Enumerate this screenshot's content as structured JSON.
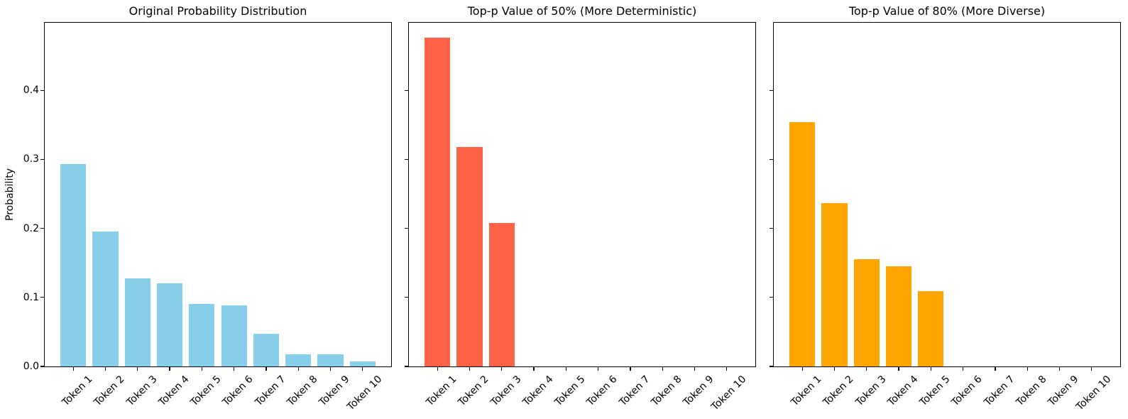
{
  "figure": {
    "background_color": "#ffffff",
    "text_color": "#000000"
  },
  "chart_data": [
    {
      "type": "bar",
      "title": "Original Probability Distribution",
      "ylabel": "Probability",
      "xlabel": "",
      "categories": [
        "Token 1",
        "Token 2",
        "Token 3",
        "Token 4",
        "Token 5",
        "Token 6",
        "Token 7",
        "Token 8",
        "Token 9",
        "Token 10"
      ],
      "values": [
        0.293,
        0.196,
        0.128,
        0.12,
        0.091,
        0.089,
        0.047,
        0.017,
        0.017,
        0.007
      ],
      "bar_color": "#87CEEB",
      "bar_color_name": "skyblue",
      "ylim": [
        0,
        0.498
      ],
      "yticks": [
        0,
        0.1,
        0.2,
        0.3,
        0.4
      ],
      "ytick_labels": [
        "0.0",
        "0.1",
        "0.2",
        "0.3",
        "0.4"
      ],
      "show_ytick_labels": true,
      "xtick_rotation_deg": 45,
      "grid": false,
      "legend": null
    },
    {
      "type": "bar",
      "title": "Top-p Value of 50% (More Deterministic)",
      "ylabel": "",
      "xlabel": "",
      "categories": [
        "Token 1",
        "Token 2",
        "Token 3",
        "Token 4",
        "Token 5",
        "Token 6",
        "Token 7",
        "Token 8",
        "Token 9",
        "Token 10"
      ],
      "values": [
        0.476,
        0.318,
        0.208,
        0,
        0,
        0,
        0,
        0,
        0,
        0
      ],
      "bar_color": "#FF6347",
      "bar_color_name": "tomato",
      "ylim": [
        0,
        0.498
      ],
      "yticks": [
        0,
        0.1,
        0.2,
        0.3,
        0.4
      ],
      "ytick_labels": [
        "0.0",
        "0.1",
        "0.2",
        "0.3",
        "0.4"
      ],
      "show_ytick_labels": false,
      "xtick_rotation_deg": 45,
      "grid": false,
      "legend": null
    },
    {
      "type": "bar",
      "title": "Top-p Value of 80% (More Diverse)",
      "ylabel": "",
      "xlabel": "",
      "categories": [
        "Token 1",
        "Token 2",
        "Token 3",
        "Token 4",
        "Token 5",
        "Token 6",
        "Token 7",
        "Token 8",
        "Token 9",
        "Token 10"
      ],
      "values": [
        0.354,
        0.237,
        0.155,
        0.145,
        0.109,
        0,
        0,
        0,
        0,
        0
      ],
      "bar_color": "#FFA500",
      "bar_color_name": "orange",
      "ylim": [
        0,
        0.498
      ],
      "yticks": [
        0,
        0.1,
        0.2,
        0.3,
        0.4
      ],
      "ytick_labels": [
        "0.0",
        "0.1",
        "0.2",
        "0.3",
        "0.4"
      ],
      "show_ytick_labels": false,
      "xtick_rotation_deg": 45,
      "grid": false,
      "legend": null
    }
  ]
}
